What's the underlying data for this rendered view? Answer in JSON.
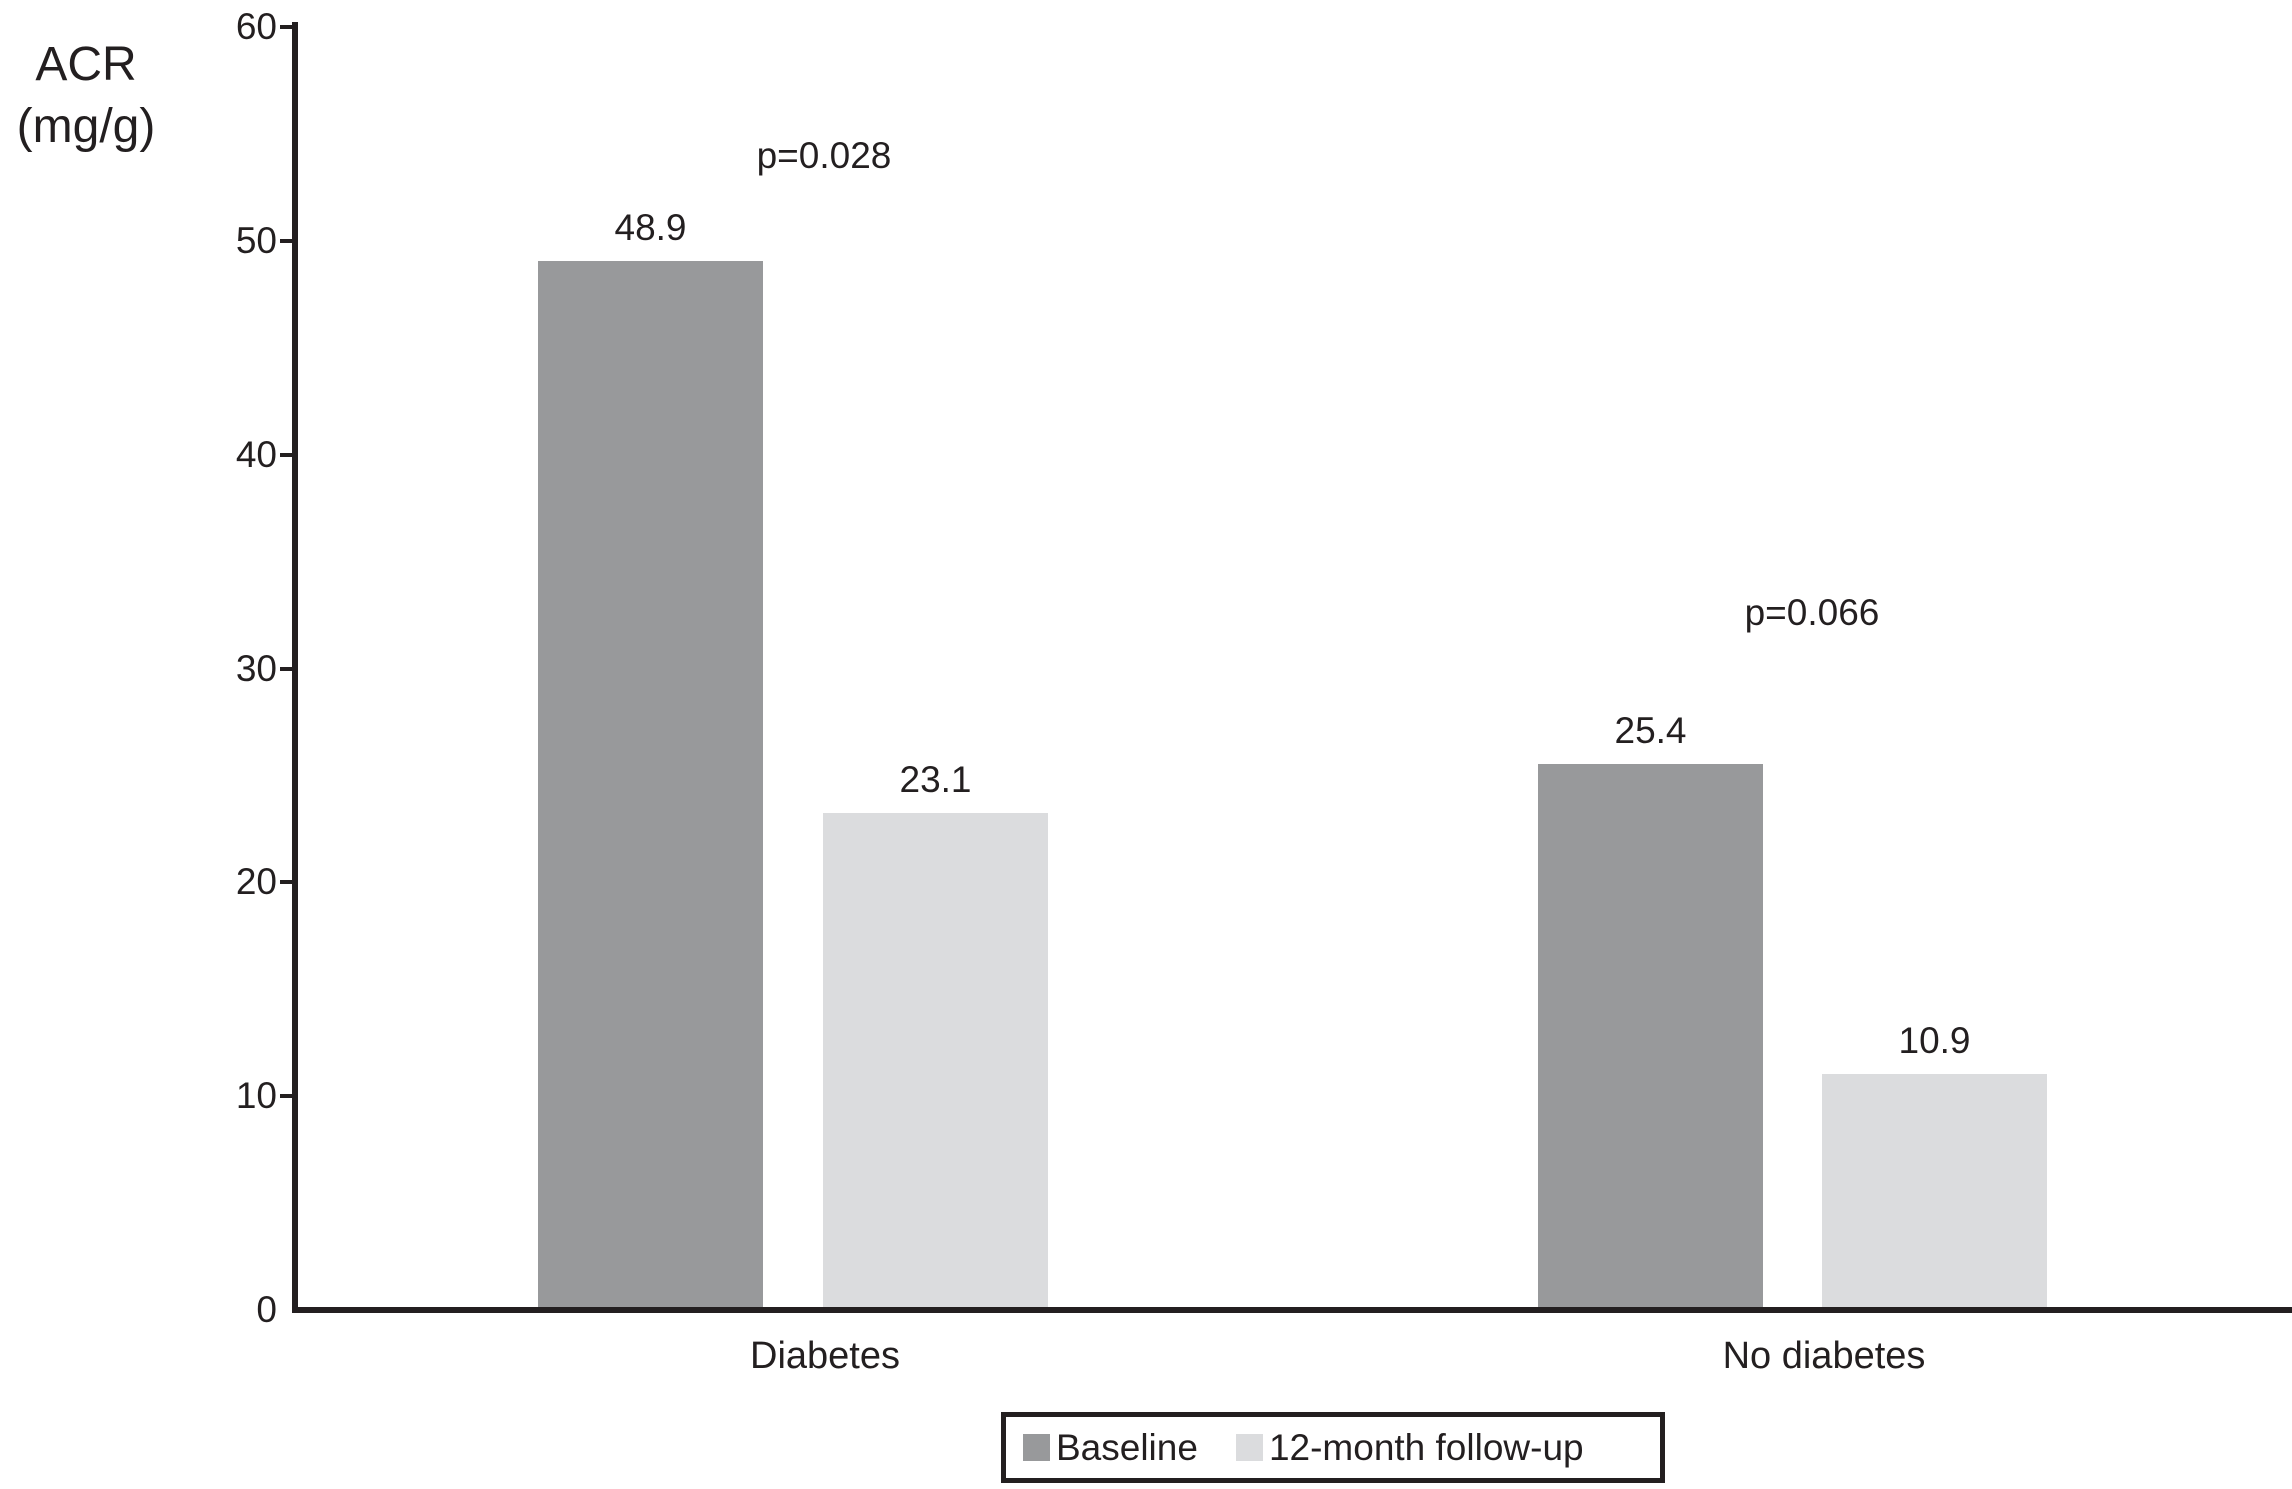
{
  "chart_data": {
    "type": "bar",
    "title": "",
    "ylabel_line1": "ACR",
    "ylabel_line2": "(mg/g)",
    "categories": [
      "Diabetes",
      "No diabetes"
    ],
    "series": [
      {
        "name": "Baseline",
        "color": "#98999b",
        "values": [
          48.9,
          25.4
        ]
      },
      {
        "name": "12-month follow-up",
        "color": "#dbdcde",
        "values": [
          23.1,
          10.9
        ]
      }
    ],
    "annotations": [
      {
        "text": "p=0.028",
        "group": 0
      },
      {
        "text": "p=0.066",
        "group": 1
      }
    ],
    "ylim": [
      0,
      60
    ],
    "yticks": [
      0,
      10,
      20,
      30,
      40,
      50,
      60
    ],
    "grid": false,
    "legend_position": "bottom",
    "axis_color": "#231f20",
    "text_color": "#231f20",
    "background_color": "#ffffff"
  }
}
